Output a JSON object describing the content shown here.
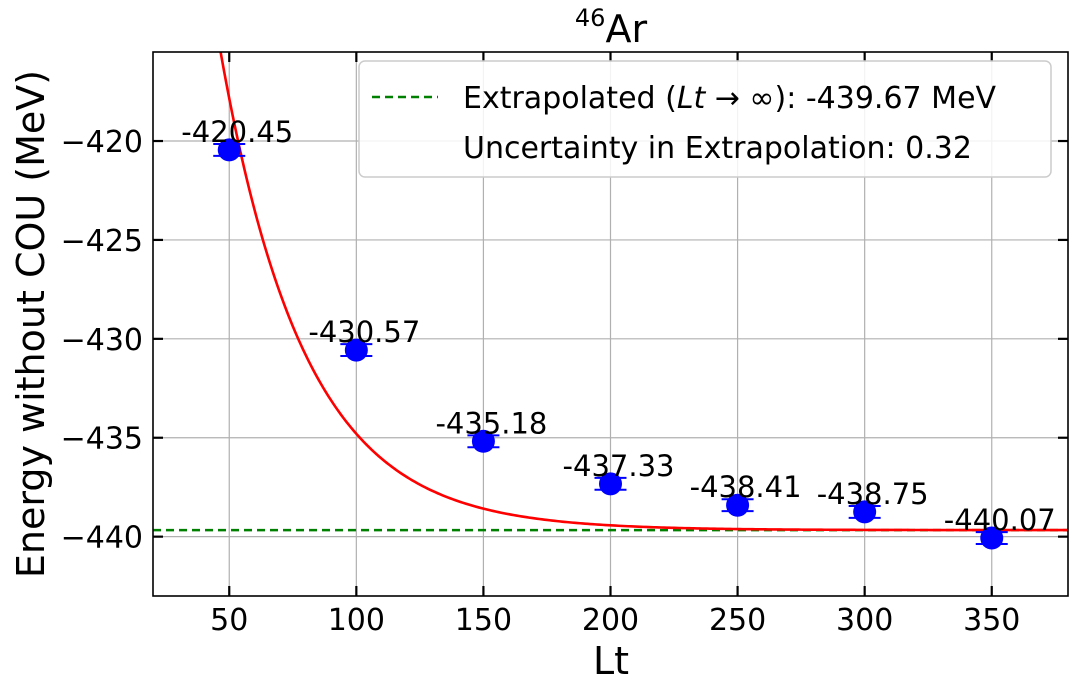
{
  "chart_data": {
    "type": "scatter",
    "title": {
      "superscript": "46",
      "base": "Ar"
    },
    "xlabel": "Lt",
    "ylabel": "Energy without COU (MeV)",
    "xlim": [
      20,
      380
    ],
    "ylim": [
      -443,
      -415.5
    ],
    "x_ticks": [
      50,
      100,
      150,
      200,
      250,
      300,
      350
    ],
    "y_ticks": [
      -420,
      -425,
      -430,
      -435,
      -440
    ],
    "y_tick_labels": [
      "−420",
      "−425",
      "−430",
      "−435",
      "−440"
    ],
    "grid": true,
    "legend_position": "top-right",
    "series": [
      {
        "kind": "points",
        "color": "#0000ff",
        "x": [
          50,
          100,
          150,
          200,
          250,
          300,
          350
        ],
        "y": [
          -420.45,
          -430.57,
          -435.18,
          -437.33,
          -438.41,
          -438.75,
          -440.07
        ],
        "labels": [
          "-420.45",
          "-430.57",
          "-435.18",
          "-437.33",
          "-438.41",
          "-438.75",
          "-440.07"
        ],
        "yerr": [
          0.3,
          0.3,
          0.3,
          0.3,
          0.3,
          0.3,
          0.3
        ]
      },
      {
        "kind": "fit-curve",
        "color": "#ff0000",
        "model": {
          "a": -439.67,
          "b": 97.8,
          "c": 0.03
        }
      },
      {
        "kind": "hline",
        "name": "Extrapolated",
        "color": "#008000",
        "y": -439.67
      }
    ],
    "legend": {
      "entry1_prefix": "Extrapolated (",
      "entry1_math": "Lt",
      "entry1_arrow": " → ∞",
      "entry1_suffix": "): -439.67 MeV",
      "entry2": "Uncertainty in Extrapolation: 0.32"
    }
  }
}
